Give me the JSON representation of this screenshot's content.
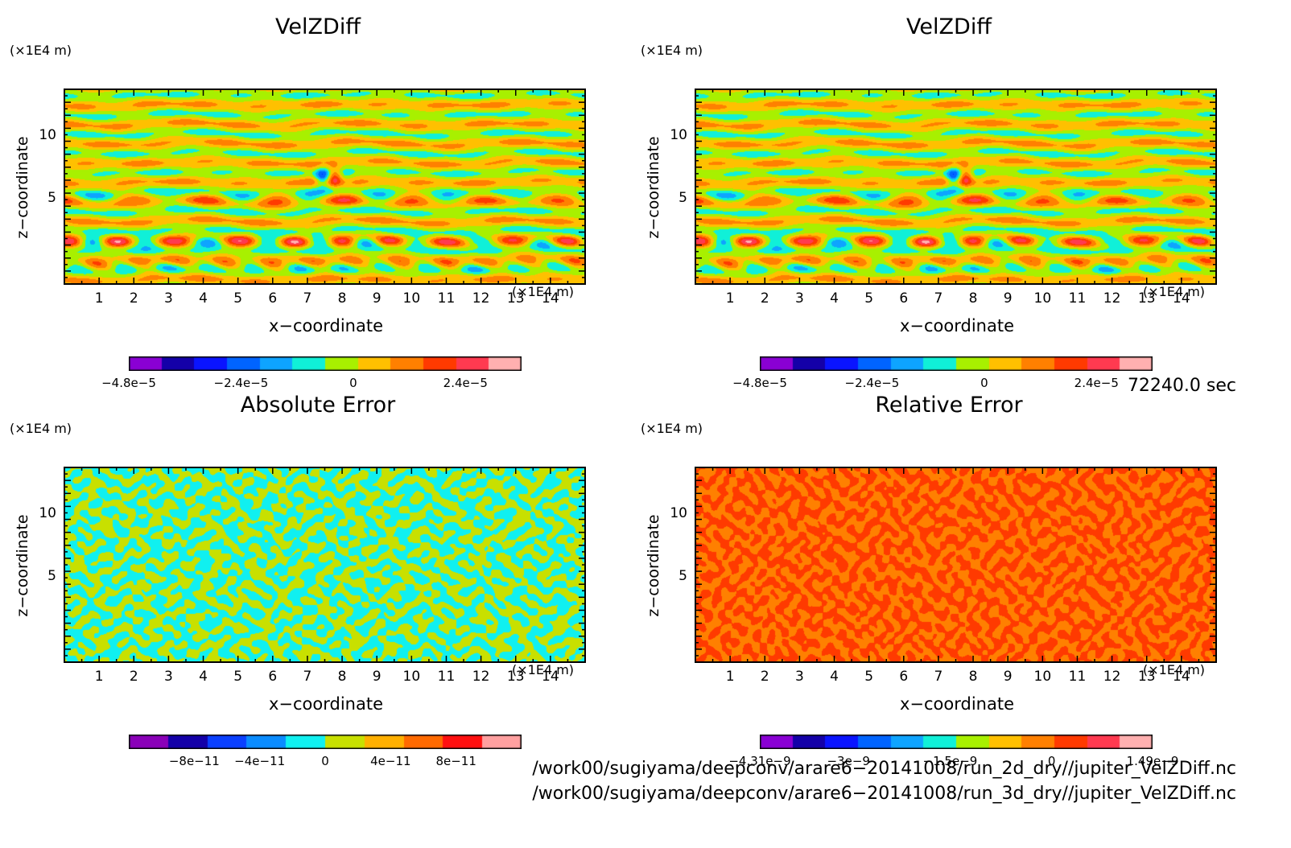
{
  "chart_data": [
    {
      "type": "heatmap",
      "title": "VelZDiff",
      "xlabel": "x−coordinate",
      "ylabel": "z−coordinate",
      "x_unit": "(×1E4 m)",
      "y_unit": "(×1E4 m)",
      "xlim": [
        0,
        15
      ],
      "ylim": [
        0,
        15
      ],
      "xticks": [
        "1",
        "2",
        "3",
        "4",
        "5",
        "6",
        "7",
        "8",
        "9",
        "10",
        "11",
        "12",
        "13",
        "14"
      ],
      "yticks": [
        "5",
        "10"
      ],
      "pattern": "smooth",
      "colorbar": {
        "colors": [
          "#8a00d4",
          "#1400a8",
          "#0a14ff",
          "#0064ff",
          "#0ea4ff",
          "#10f0d8",
          "#a8f000",
          "#ffc000",
          "#ff8000",
          "#ff3a00",
          "#ff3a50",
          "#ffb0b0"
        ],
        "min": -4.8e-05,
        "max": 3.6e-05,
        "labels": [
          {
            "text": "−4.8e−5",
            "value": -4.8e-05
          },
          {
            "text": "−2.4e−5",
            "value": -2.4e-05
          },
          {
            "text": "0",
            "value": 0
          },
          {
            "text": "2.4e−5",
            "value": 2.4e-05
          }
        ]
      }
    },
    {
      "type": "heatmap",
      "title": "VelZDiff",
      "xlabel": "x−coordinate",
      "ylabel": "z−coordinate",
      "x_unit": "(×1E4 m)",
      "y_unit": "(×1E4 m)",
      "xlim": [
        0,
        15
      ],
      "ylim": [
        0,
        15
      ],
      "xticks": [
        "1",
        "2",
        "3",
        "4",
        "5",
        "6",
        "7",
        "8",
        "9",
        "10",
        "11",
        "12",
        "13",
        "14"
      ],
      "yticks": [
        "5",
        "10"
      ],
      "pattern": "smooth",
      "colorbar": {
        "colors": [
          "#8a00d4",
          "#1400a8",
          "#0a14ff",
          "#0064ff",
          "#0ea4ff",
          "#10f0d8",
          "#a8f000",
          "#ffc000",
          "#ff8000",
          "#ff3a00",
          "#ff3a50",
          "#ffb0b0"
        ],
        "min": -4.8e-05,
        "max": 3.6e-05,
        "labels": [
          {
            "text": "−4.8e−5",
            "value": -4.8e-05
          },
          {
            "text": "−2.4e−5",
            "value": -2.4e-05
          },
          {
            "text": "0",
            "value": 0
          },
          {
            "text": "2.4e−5",
            "value": 2.4e-05
          }
        ]
      }
    },
    {
      "type": "heatmap",
      "title": "Absolute Error",
      "xlabel": "x−coordinate",
      "ylabel": "z−coordinate",
      "x_unit": "(×1E4 m)",
      "y_unit": "(×1E4 m)",
      "xlim": [
        0,
        15
      ],
      "ylim": [
        0,
        15
      ],
      "xticks": [
        "1",
        "2",
        "3",
        "4",
        "5",
        "6",
        "7",
        "8",
        "9",
        "10",
        "11",
        "12",
        "13",
        "14"
      ],
      "yticks": [
        "5",
        "10"
      ],
      "pattern": "noise",
      "dominant_colors": [
        "#10f0f0",
        "#c8e000"
      ],
      "colorbar": {
        "colors": [
          "#8a00b8",
          "#1400a8",
          "#0a40ff",
          "#0a8cff",
          "#10f0f0",
          "#c8e000",
          "#ffb000",
          "#ff6a00",
          "#ff1010",
          "#ffa0a0"
        ],
        "min": -1.2e-10,
        "max": 1.2e-10,
        "labels": [
          {
            "text": "−8e−11",
            "value": -8e-11
          },
          {
            "text": "−4e−11",
            "value": -4e-11
          },
          {
            "text": "0",
            "value": 0
          },
          {
            "text": "4e−11",
            "value": 4e-11
          },
          {
            "text": "8e−11",
            "value": 8e-11
          }
        ]
      }
    },
    {
      "type": "heatmap",
      "title": "Relative Error",
      "xlabel": "x−coordinate",
      "ylabel": "z−coordinate",
      "x_unit": "(×1E4 m)",
      "y_unit": "(×1E4 m)",
      "xlim": [
        0,
        15
      ],
      "ylim": [
        0,
        15
      ],
      "xticks": [
        "1",
        "2",
        "3",
        "4",
        "5",
        "6",
        "7",
        "8",
        "9",
        "10",
        "11",
        "12",
        "13",
        "14"
      ],
      "yticks": [
        "5",
        "10"
      ],
      "pattern": "noise",
      "dominant_colors": [
        "#ff8000",
        "#ff3a00"
      ],
      "colorbar": {
        "colors": [
          "#8a00d4",
          "#1400a8",
          "#0a14ff",
          "#0064ff",
          "#0ea4ff",
          "#10f0d8",
          "#a8f000",
          "#ffc000",
          "#ff8000",
          "#ff3a00",
          "#ff3a50",
          "#ffb0b0"
        ],
        "min": -4.31e-09,
        "max": 1.49e-09,
        "labels": [
          {
            "text": "−4.31e−9",
            "value": -4.31e-09
          },
          {
            "text": "−3e−9",
            "value": -3e-09
          },
          {
            "text": "−1.5e−9",
            "value": -1.5e-09
          },
          {
            "text": "0",
            "value": 0
          },
          {
            "text": "1.49e−9",
            "value": 1.49e-09
          }
        ]
      }
    }
  ],
  "time_label": "72240.0 sec",
  "files": [
    "/work00/sugiyama/deepconv/arare6−20141008/run_2d_dry//jupiter_VelZDiff.nc",
    "/work00/sugiyama/deepconv/arare6−20141008/run_3d_dry//jupiter_VelZDiff.nc"
  ]
}
